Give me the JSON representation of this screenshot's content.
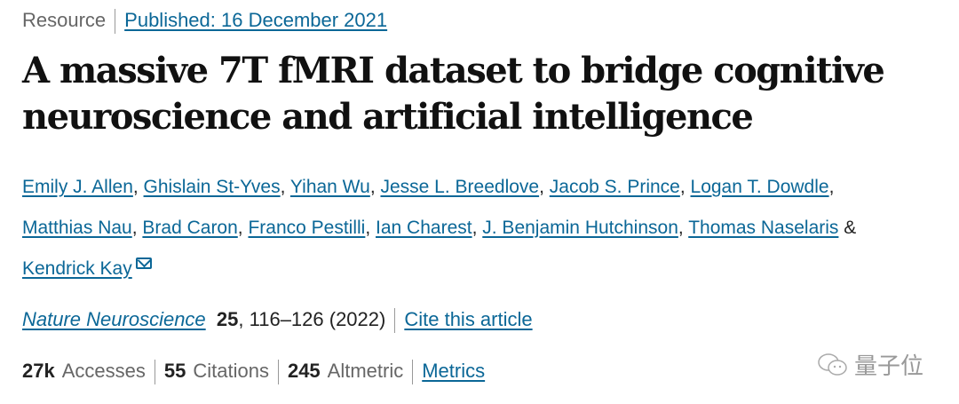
{
  "meta": {
    "type": "Resource",
    "published": "Published: 16 December 2021"
  },
  "title": "A massive 7T fMRI dataset to bridge cognitive neuroscience and artificial intelligence",
  "authors": [
    "Emily J. Allen",
    "Ghislain St-Yves",
    "Yihan Wu",
    "Jesse L. Breedlove",
    "Jacob S. Prince",
    "Logan T. Dowdle",
    "Matthias Nau",
    "Brad Caron",
    "Franco Pestilli",
    "Ian Charest",
    "J. Benjamin Hutchinson",
    "Thomas Naselaris",
    "Kendrick Kay"
  ],
  "amp": "&",
  "journal": {
    "name": "Nature Neuroscience",
    "volume": "25",
    "pages": ", 116–126 (2022)",
    "cite": "Cite this article"
  },
  "metrics": {
    "accesses_value": "27k",
    "accesses_label": "Accesses",
    "citations_value": "55",
    "citations_label": "Citations",
    "altmetric_value": "245",
    "altmetric_label": "Altmetric",
    "link": "Metrics"
  },
  "watermark": "量子位"
}
